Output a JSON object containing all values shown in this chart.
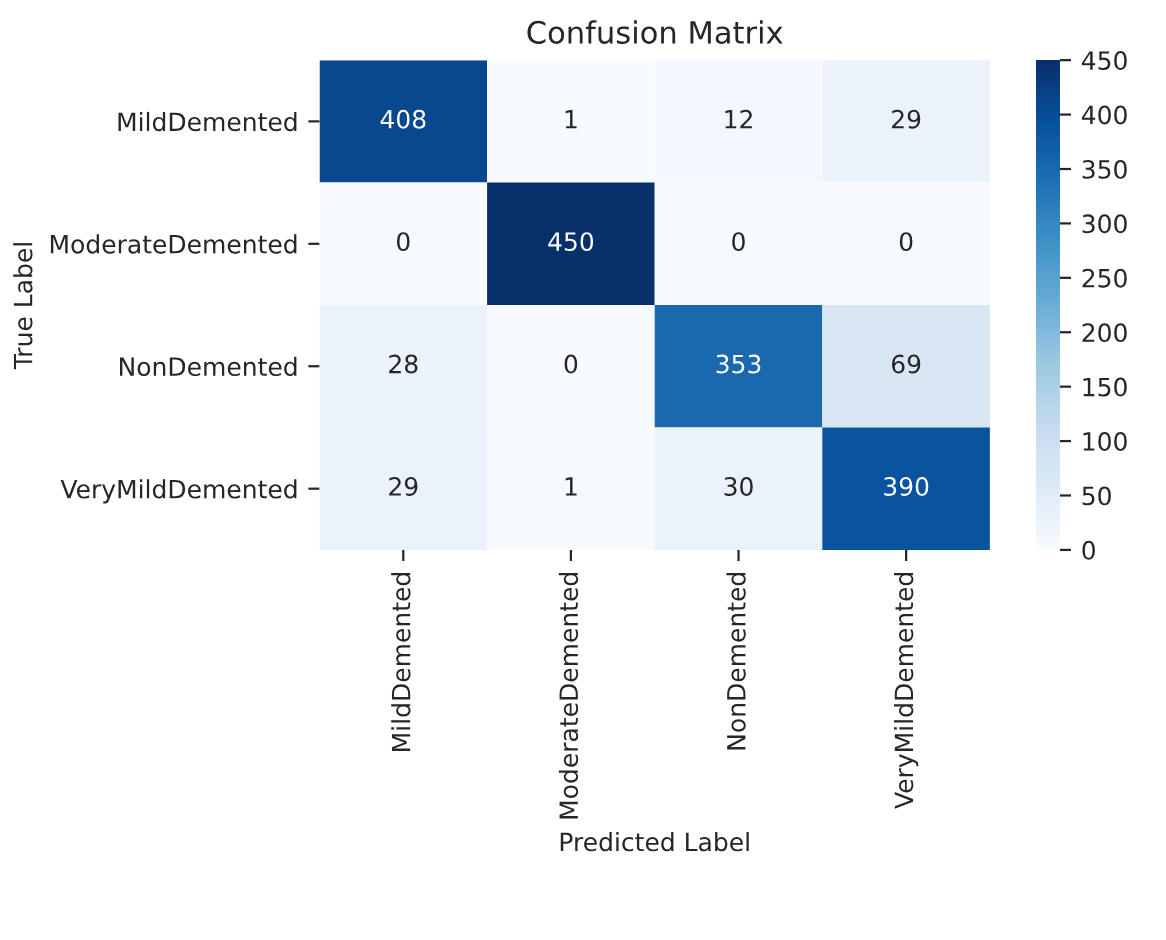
{
  "chart_data": {
    "type": "heatmap",
    "title": "Confusion Matrix",
    "xlabel": "Predicted Label",
    "ylabel": "True Label",
    "categories": [
      "MildDemented",
      "ModerateDemented",
      "NonDemented",
      "VeryMildDemented"
    ],
    "y_categories": [
      "MildDemented",
      "ModerateDemented",
      "NonDemented",
      "VeryMildDemented"
    ],
    "cells": [
      [
        408,
        1,
        12,
        29
      ],
      [
        0,
        450,
        0,
        0
      ],
      [
        28,
        0,
        353,
        69
      ],
      [
        29,
        1,
        30,
        390
      ]
    ],
    "data_labels": true,
    "clim": [
      0,
      450
    ],
    "cticks": [
      0,
      50,
      100,
      150,
      200,
      250,
      300,
      350,
      400,
      450
    ]
  }
}
